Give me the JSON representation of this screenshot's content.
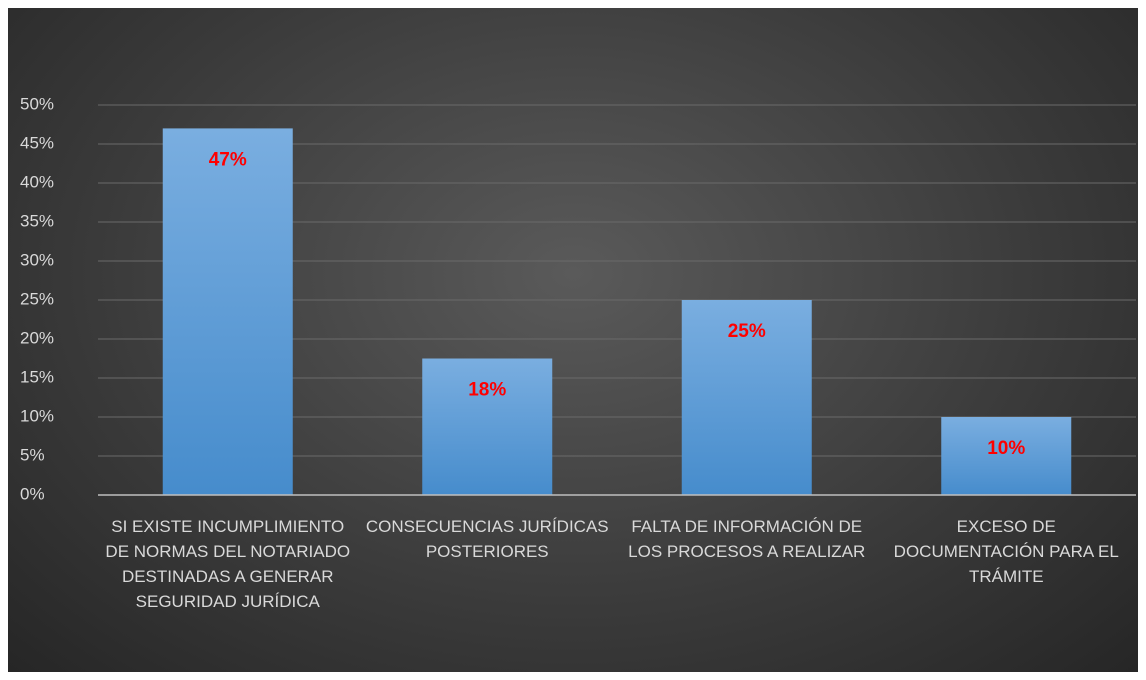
{
  "chart_data": {
    "type": "bar",
    "categories": [
      "SI EXISTE INCUMPLIMIENTO DE NORMAS DEL NOTARIADO DESTINADAS A GENERAR SEGURIDAD JURÍDICA",
      "CONSECUENCIAS JURÍDICAS POSTERIORES",
      "FALTA DE INFORMACIÓN DE LOS PROCESOS A REALIZAR",
      "EXCESO DE DOCUMENTACIÓN PARA EL TRÁMITE"
    ],
    "values": [
      47,
      17.5,
      25,
      10
    ],
    "value_labels": [
      "47%",
      "18%",
      "25%",
      "10%"
    ],
    "color": "#5b9bd5",
    "ylim": [
      0,
      50
    ],
    "yticks": [
      {
        "value": 0,
        "label": "0%"
      },
      {
        "value": 5,
        "label": "5%"
      },
      {
        "value": 10,
        "label": "10%"
      },
      {
        "value": 15,
        "label": "15%"
      },
      {
        "value": 20,
        "label": "20%"
      },
      {
        "value": 25,
        "label": "25%"
      },
      {
        "value": 30,
        "label": "30%"
      },
      {
        "value": 35,
        "label": "35%"
      },
      {
        "value": 40,
        "label": "40%"
      },
      {
        "value": 45,
        "label": "45%"
      },
      {
        "value": 50,
        "label": "50%"
      }
    ],
    "grid": true
  }
}
